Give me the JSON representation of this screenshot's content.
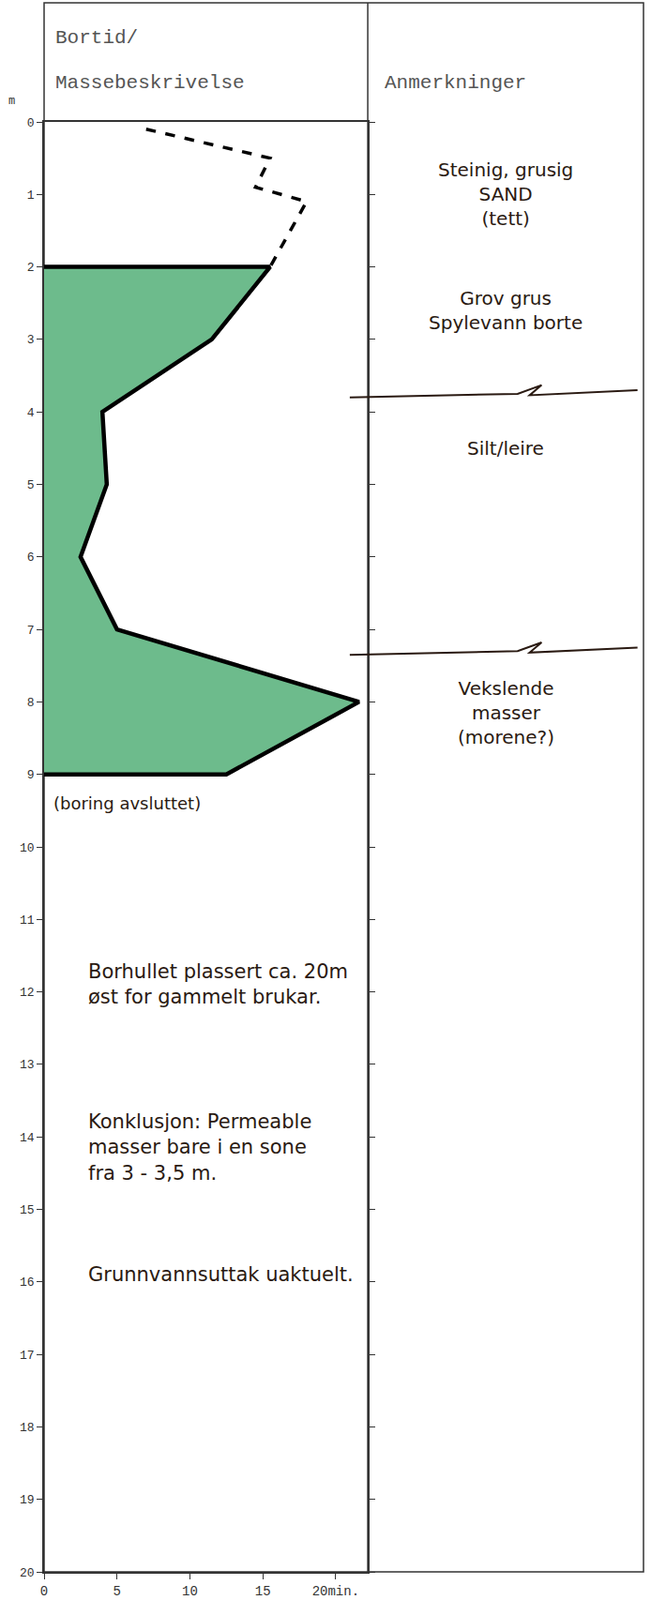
{
  "chart_data": {
    "type": "area",
    "x_label_lines": [
      "Bortid/",
      "Massebeskrivelse"
    ],
    "remarks_header": "Anmerkninger",
    "y_label": "m",
    "xlim": [
      0,
      22.2
    ],
    "xticks": [
      0,
      5,
      10,
      15,
      {
        "value": 20,
        "label": "20min."
      }
    ],
    "ylim": [
      20,
      0
    ],
    "yticks": [
      0,
      1,
      2,
      3,
      4,
      5,
      6,
      7,
      8,
      9,
      10,
      11,
      12,
      13,
      14,
      15,
      16,
      17,
      18,
      19,
      20
    ],
    "series": [
      {
        "line_style": "dashed",
        "x": [
          7,
          15.5,
          14.5,
          18,
          15.5
        ],
        "y": [
          0.1,
          0.5,
          0.9,
          1.1,
          2.0
        ]
      },
      {
        "type": "area",
        "color": "#6dbb8c",
        "x": [
          0,
          15.5,
          11.5,
          4,
          4.3,
          2.5,
          5,
          21.6,
          12.5,
          0
        ],
        "y": [
          2,
          2,
          3,
          4,
          5,
          6,
          7,
          8,
          9,
          9
        ]
      }
    ],
    "remarks": [
      {
        "lines": [
          "Steinig, grusig",
          "SAND",
          "(tett)"
        ],
        "depth": 1.0
      },
      {
        "lines": [
          "Grov grus",
          "Spylevann borte"
        ],
        "depth": 2.6
      },
      {
        "lines": [
          "Silt/leire"
        ],
        "depth": 4.5
      },
      {
        "lines": [
          "Vekslende",
          "masser",
          "(morene?)"
        ],
        "depth": 8.15
      }
    ],
    "layer_boundaries": [
      3.75,
      7.3
    ],
    "end_note": {
      "text": "(boring avsluttet)",
      "depth": 9.4
    },
    "notes": [
      {
        "lines": [
          "Borhullet plassert ca. 20m",
          "øst for gammelt brukar."
        ],
        "depth": 11.9
      },
      {
        "lines": [
          "Konklusjon: Permeable",
          "masser bare i en sone",
          "fra 3 - 3,5 m."
        ],
        "depth": 14.15
      },
      {
        "lines": [
          "Grunnvannsuttak uaktuelt."
        ],
        "depth": 15.9
      }
    ]
  }
}
